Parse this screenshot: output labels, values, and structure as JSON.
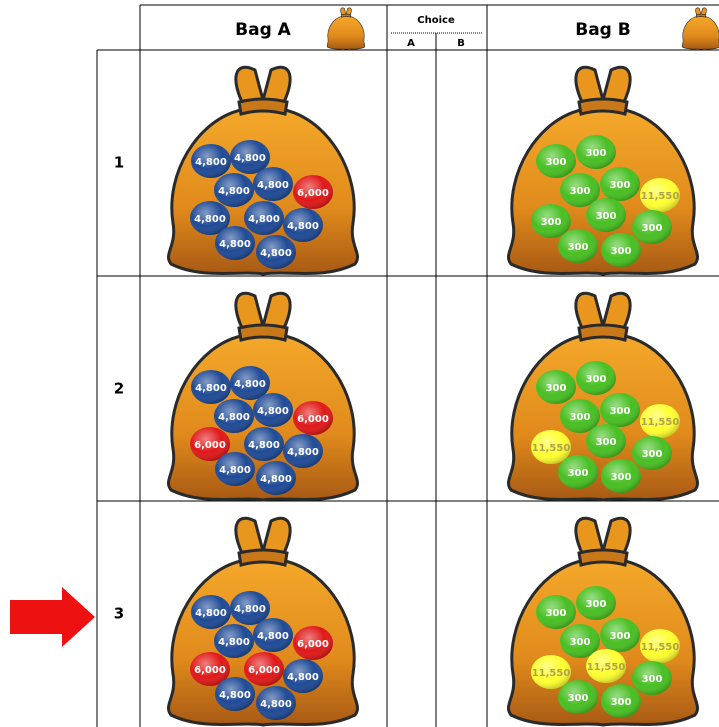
{
  "header": {
    "bag_a": "Bag A",
    "choice": "Choice",
    "choice_a": "A",
    "choice_b": "B",
    "bag_b": "Bag B"
  },
  "rows": [
    {
      "number": "1",
      "bag_a": [
        {
          "label": "4,800",
          "color": "#1f4a96",
          "text_color": "#ffffff"
        },
        {
          "label": "4,800",
          "color": "#1f4a96",
          "text_color": "#ffffff"
        },
        {
          "label": "4,800",
          "color": "#1f4a96",
          "text_color": "#ffffff"
        },
        {
          "label": "4,800",
          "color": "#1f4a96",
          "text_color": "#ffffff"
        },
        {
          "label": "6,000",
          "color": "#e01818",
          "text_color": "#ffffff"
        },
        {
          "label": "4,800",
          "color": "#1f4a96",
          "text_color": "#ffffff"
        },
        {
          "label": "4,800",
          "color": "#1f4a96",
          "text_color": "#ffffff"
        },
        {
          "label": "4,800",
          "color": "#1f4a96",
          "text_color": "#ffffff"
        },
        {
          "label": "4,800",
          "color": "#1f4a96",
          "text_color": "#ffffff"
        },
        {
          "label": "4,800",
          "color": "#1f4a96",
          "text_color": "#ffffff"
        }
      ],
      "bag_b": [
        {
          "label": "300",
          "color": "#48bf22",
          "text_color": "#ffffff"
        },
        {
          "label": "300",
          "color": "#48bf22",
          "text_color": "#ffffff"
        },
        {
          "label": "300",
          "color": "#48bf22",
          "text_color": "#ffffff"
        },
        {
          "label": "300",
          "color": "#48bf22",
          "text_color": "#ffffff"
        },
        {
          "label": "11,550",
          "color": "#ffff30",
          "text_color": "#b0a050"
        },
        {
          "label": "300",
          "color": "#48bf22",
          "text_color": "#ffffff"
        },
        {
          "label": "300",
          "color": "#48bf22",
          "text_color": "#ffffff"
        },
        {
          "label": "300",
          "color": "#48bf22",
          "text_color": "#ffffff"
        },
        {
          "label": "300",
          "color": "#48bf22",
          "text_color": "#ffffff"
        },
        {
          "label": "300",
          "color": "#48bf22",
          "text_color": "#ffffff"
        }
      ]
    },
    {
      "number": "2",
      "bag_a": [
        {
          "label": "4,800",
          "color": "#1f4a96",
          "text_color": "#ffffff"
        },
        {
          "label": "4,800",
          "color": "#1f4a96",
          "text_color": "#ffffff"
        },
        {
          "label": "4,800",
          "color": "#1f4a96",
          "text_color": "#ffffff"
        },
        {
          "label": "4,800",
          "color": "#1f4a96",
          "text_color": "#ffffff"
        },
        {
          "label": "6,000",
          "color": "#e01818",
          "text_color": "#ffffff"
        },
        {
          "label": "6,000",
          "color": "#e01818",
          "text_color": "#ffffff"
        },
        {
          "label": "4,800",
          "color": "#1f4a96",
          "text_color": "#ffffff"
        },
        {
          "label": "4,800",
          "color": "#1f4a96",
          "text_color": "#ffffff"
        },
        {
          "label": "4,800",
          "color": "#1f4a96",
          "text_color": "#ffffff"
        },
        {
          "label": "4,800",
          "color": "#1f4a96",
          "text_color": "#ffffff"
        }
      ],
      "bag_b": [
        {
          "label": "300",
          "color": "#48bf22",
          "text_color": "#ffffff"
        },
        {
          "label": "300",
          "color": "#48bf22",
          "text_color": "#ffffff"
        },
        {
          "label": "300",
          "color": "#48bf22",
          "text_color": "#ffffff"
        },
        {
          "label": "300",
          "color": "#48bf22",
          "text_color": "#ffffff"
        },
        {
          "label": "11,550",
          "color": "#ffff30",
          "text_color": "#b0a050"
        },
        {
          "label": "11,550",
          "color": "#ffff30",
          "text_color": "#b0a050"
        },
        {
          "label": "300",
          "color": "#48bf22",
          "text_color": "#ffffff"
        },
        {
          "label": "300",
          "color": "#48bf22",
          "text_color": "#ffffff"
        },
        {
          "label": "300",
          "color": "#48bf22",
          "text_color": "#ffffff"
        },
        {
          "label": "300",
          "color": "#48bf22",
          "text_color": "#ffffff"
        }
      ]
    },
    {
      "number": "3",
      "bag_a": [
        {
          "label": "4,800",
          "color": "#1f4a96",
          "text_color": "#ffffff"
        },
        {
          "label": "4,800",
          "color": "#1f4a96",
          "text_color": "#ffffff"
        },
        {
          "label": "4,800",
          "color": "#1f4a96",
          "text_color": "#ffffff"
        },
        {
          "label": "4,800",
          "color": "#1f4a96",
          "text_color": "#ffffff"
        },
        {
          "label": "6,000",
          "color": "#e01818",
          "text_color": "#ffffff"
        },
        {
          "label": "6,000",
          "color": "#e01818",
          "text_color": "#ffffff"
        },
        {
          "label": "6,000",
          "color": "#e01818",
          "text_color": "#ffffff"
        },
        {
          "label": "4,800",
          "color": "#1f4a96",
          "text_color": "#ffffff"
        },
        {
          "label": "4,800",
          "color": "#1f4a96",
          "text_color": "#ffffff"
        },
        {
          "label": "4,800",
          "color": "#1f4a96",
          "text_color": "#ffffff"
        }
      ],
      "bag_b": [
        {
          "label": "300",
          "color": "#48bf22",
          "text_color": "#ffffff"
        },
        {
          "label": "300",
          "color": "#48bf22",
          "text_color": "#ffffff"
        },
        {
          "label": "300",
          "color": "#48bf22",
          "text_color": "#ffffff"
        },
        {
          "label": "300",
          "color": "#48bf22",
          "text_color": "#ffffff"
        },
        {
          "label": "11,550",
          "color": "#ffff30",
          "text_color": "#b0a050"
        },
        {
          "label": "11,550",
          "color": "#ffff30",
          "text_color": "#b0a050"
        },
        {
          "label": "11,550",
          "color": "#ffff30",
          "text_color": "#b0a050"
        },
        {
          "label": "300",
          "color": "#48bf22",
          "text_color": "#ffffff"
        },
        {
          "label": "300",
          "color": "#48bf22",
          "text_color": "#ffffff"
        },
        {
          "label": "300",
          "color": "#48bf22",
          "text_color": "#ffffff"
        }
      ]
    }
  ]
}
